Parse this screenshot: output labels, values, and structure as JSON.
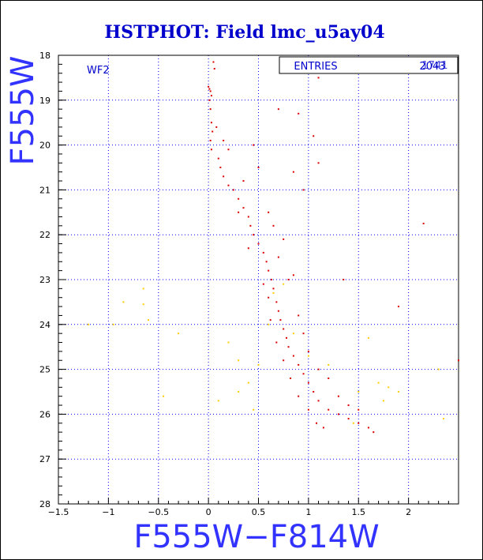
{
  "chart_data": {
    "type": "scatter",
    "title": "HSTPHOT: Field lmc_u5ay04",
    "xlabel": "F555W−F814W",
    "ylabel": "F555W",
    "xlim": [
      -1.5,
      2.5
    ],
    "ylim": [
      28,
      18
    ],
    "y_inverted": true,
    "grid": true,
    "grid_style": "dotted",
    "x_ticks": [
      -1.5,
      -1,
      -0.5,
      0,
      0.5,
      1,
      1.5,
      2
    ],
    "x_tick_labels": [
      "−1.5",
      "−1",
      "−0.5",
      "0",
      "0.5",
      "1",
      "1.5",
      "2"
    ],
    "y_ticks": [
      18,
      19,
      20,
      21,
      22,
      23,
      24,
      25,
      26,
      27,
      28
    ],
    "y_tick_labels": [
      "18",
      "19",
      "20",
      "21",
      "22",
      "23",
      "24",
      "25",
      "26",
      "27",
      "28"
    ],
    "annotation": "WF2",
    "stats_box": {
      "label": "ENTRIES",
      "value_a": "2043",
      "value_b": "1741"
    },
    "colors": {
      "title": "#0000cc",
      "axis_label": "#3333ff",
      "red_points": "#dd0000",
      "yellow_points": "#ffcc00",
      "grid": "#0000ff"
    },
    "series": [
      {
        "color": "red",
        "points": [
          [
            0.0,
            18.7
          ],
          [
            0.01,
            18.75
          ],
          [
            0.02,
            18.8
          ],
          [
            0.03,
            18.9
          ],
          [
            0.01,
            19.0
          ],
          [
            0.02,
            19.2
          ],
          [
            0.03,
            19.5
          ],
          [
            0.04,
            19.7
          ],
          [
            0.02,
            19.9
          ],
          [
            0.03,
            20.1
          ],
          [
            0.05,
            18.15
          ],
          [
            0.06,
            18.3
          ],
          [
            0.1,
            20.3
          ],
          [
            0.12,
            20.5
          ],
          [
            0.15,
            20.7
          ],
          [
            0.2,
            20.9
          ],
          [
            0.25,
            21.0
          ],
          [
            0.3,
            21.2
          ],
          [
            0.35,
            21.4
          ],
          [
            0.4,
            21.6
          ],
          [
            0.42,
            21.8
          ],
          [
            0.45,
            22.0
          ],
          [
            0.5,
            22.2
          ],
          [
            0.55,
            22.4
          ],
          [
            0.58,
            22.6
          ],
          [
            0.6,
            22.8
          ],
          [
            0.63,
            23.0
          ],
          [
            0.65,
            23.2
          ],
          [
            0.68,
            23.5
          ],
          [
            0.7,
            23.7
          ],
          [
            0.72,
            23.9
          ],
          [
            0.75,
            24.1
          ],
          [
            0.78,
            24.3
          ],
          [
            0.8,
            24.5
          ],
          [
            0.85,
            24.7
          ],
          [
            0.9,
            24.9
          ],
          [
            0.95,
            25.1
          ],
          [
            1.0,
            25.3
          ],
          [
            1.05,
            25.5
          ],
          [
            1.1,
            25.7
          ],
          [
            1.2,
            25.9
          ],
          [
            1.3,
            26.0
          ],
          [
            1.4,
            26.1
          ],
          [
            1.5,
            26.2
          ],
          [
            1.6,
            26.3
          ],
          [
            1.65,
            26.4
          ],
          [
            0.7,
            22.5
          ],
          [
            0.8,
            23.0
          ],
          [
            0.9,
            23.8
          ],
          [
            0.95,
            24.2
          ],
          [
            0.6,
            21.5
          ],
          [
            0.65,
            21.8
          ],
          [
            0.75,
            22.1
          ],
          [
            0.85,
            22.9
          ],
          [
            1.0,
            24.6
          ],
          [
            1.1,
            25.0
          ],
          [
            1.2,
            25.2
          ],
          [
            1.3,
            25.6
          ],
          [
            1.4,
            25.8
          ],
          [
            1.5,
            25.9
          ],
          [
            0.55,
            23.1
          ],
          [
            0.6,
            23.4
          ],
          [
            0.62,
            23.9
          ],
          [
            0.68,
            24.4
          ],
          [
            0.75,
            24.8
          ],
          [
            0.82,
            25.2
          ],
          [
            0.9,
            25.6
          ],
          [
            1.0,
            25.9
          ],
          [
            1.08,
            26.2
          ],
          [
            1.15,
            26.3
          ],
          [
            0.9,
            18.2
          ],
          [
            1.1,
            18.5
          ],
          [
            0.7,
            19.2
          ],
          [
            0.9,
            19.3
          ],
          [
            1.05,
            19.8
          ],
          [
            1.1,
            20.4
          ],
          [
            0.95,
            21.0
          ],
          [
            0.85,
            20.6
          ],
          [
            2.15,
            21.75
          ],
          [
            1.9,
            23.6
          ],
          [
            2.5,
            24.8
          ],
          [
            1.35,
            23.0
          ],
          [
            0.5,
            20.5
          ],
          [
            0.45,
            20.0
          ],
          [
            0.35,
            20.8
          ],
          [
            0.2,
            20.1
          ],
          [
            0.15,
            19.9
          ],
          [
            0.08,
            19.6
          ],
          [
            0.3,
            21.5
          ],
          [
            0.4,
            22.3
          ]
        ]
      },
      {
        "color": "yellow",
        "points": [
          [
            -0.65,
            23.2
          ],
          [
            -0.85,
            23.5
          ],
          [
            -0.65,
            23.55
          ],
          [
            -0.6,
            23.9
          ],
          [
            -0.95,
            24.0
          ],
          [
            -1.2,
            24.0
          ],
          [
            -0.3,
            24.2
          ],
          [
            0.2,
            24.4
          ],
          [
            0.3,
            24.8
          ],
          [
            0.5,
            24.9
          ],
          [
            0.4,
            25.3
          ],
          [
            0.3,
            25.5
          ],
          [
            0.1,
            25.7
          ],
          [
            -0.45,
            25.6
          ],
          [
            0.45,
            25.9
          ],
          [
            1.6,
            24.3
          ],
          [
            1.8,
            25.4
          ],
          [
            1.9,
            25.5
          ],
          [
            1.75,
            25.7
          ],
          [
            2.35,
            26.1
          ],
          [
            2.3,
            25.0
          ],
          [
            1.7,
            25.3
          ],
          [
            0.65,
            23.3
          ],
          [
            0.75,
            23.1
          ],
          [
            0.6,
            24.0
          ],
          [
            0.85,
            24.2
          ],
          [
            1.0,
            24.7
          ],
          [
            1.2,
            24.9
          ],
          [
            1.45,
            26.2
          ],
          [
            1.5,
            25.5
          ]
        ]
      }
    ]
  }
}
